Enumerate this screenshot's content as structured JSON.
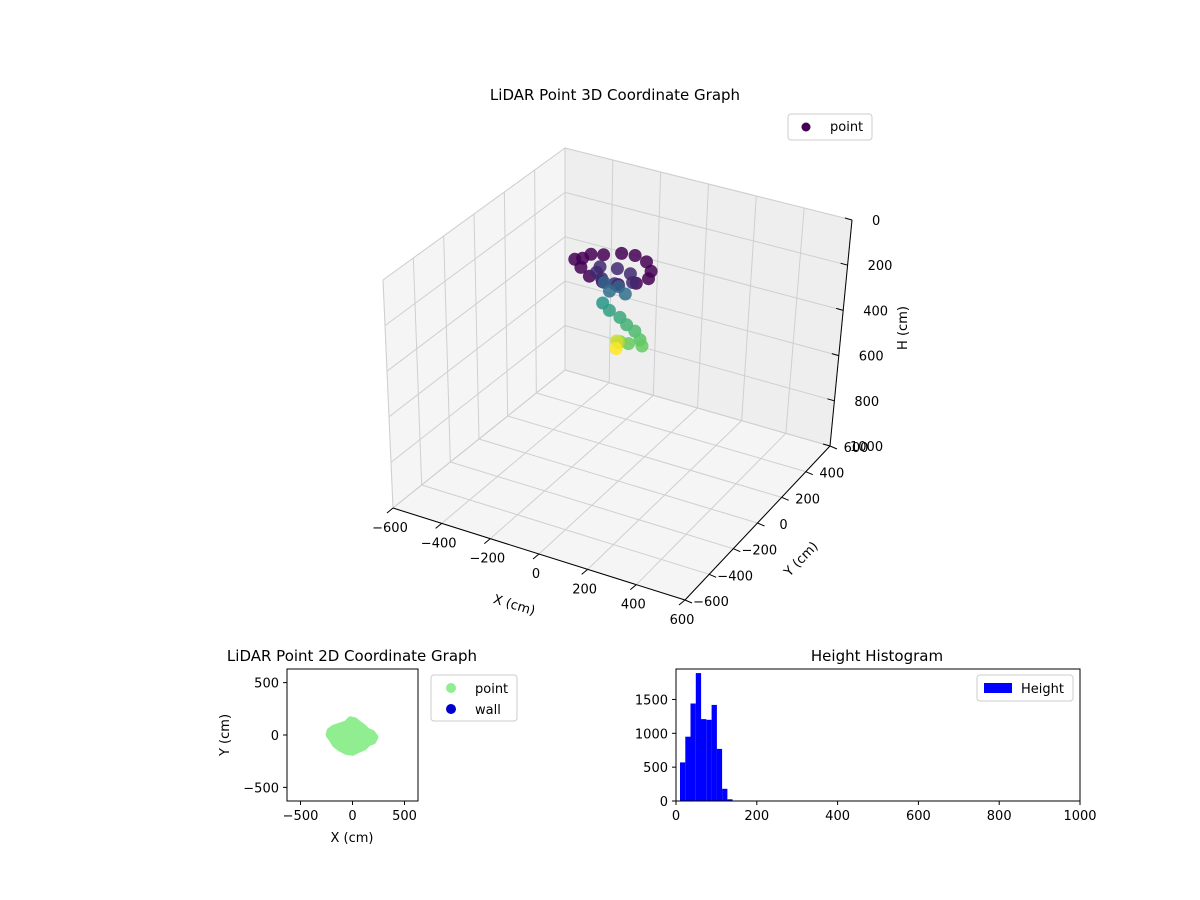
{
  "chart_data": [
    {
      "type": "scatter3d",
      "title": "LiDAR Point 3D Coordinate Graph",
      "xlabel": "X (cm)",
      "ylabel": "Y (cm)",
      "zlabel": "H (cm)",
      "xlim": [
        -600,
        600
      ],
      "ylim": [
        -600,
        600
      ],
      "zlim": [
        1000,
        0
      ],
      "xticks": [
        "−600",
        "−400",
        "−200",
        "0",
        "200",
        "400",
        "600"
      ],
      "yticks": [
        "−600",
        "−400",
        "−200",
        "0",
        "200",
        "400",
        "600"
      ],
      "zticks": [
        "0",
        "200",
        "400",
        "600",
        "800",
        "1000"
      ],
      "legend": {
        "entries": [
          "point"
        ],
        "placement": "upper-right"
      },
      "colormap": "viridis",
      "grid": true,
      "series": [
        {
          "name": "point",
          "color": "#440154",
          "points": [
            [
              -150,
              0,
              60
            ],
            [
              -100,
              60,
              60
            ],
            [
              -50,
              100,
              60
            ],
            [
              0,
              110,
              60
            ],
            [
              60,
              90,
              60
            ],
            [
              110,
              40,
              60
            ],
            [
              130,
              -10,
              60
            ],
            [
              110,
              -60,
              60
            ],
            [
              60,
              -100,
              60
            ],
            [
              0,
              -110,
              60
            ],
            [
              -60,
              -100,
              60
            ],
            [
              -120,
              -60,
              60
            ],
            [
              -170,
              -20,
              60
            ],
            [
              -140,
              40,
              60
            ],
            [
              -90,
              20,
              90
            ],
            [
              -30,
              40,
              90
            ],
            [
              30,
              30,
              90
            ],
            [
              70,
              -20,
              90
            ],
            [
              20,
              -60,
              90
            ],
            [
              -40,
              -50,
              90
            ],
            [
              -80,
              -20,
              90
            ],
            [
              -60,
              0,
              140
            ],
            [
              0,
              0,
              140
            ],
            [
              40,
              -20,
              150
            ],
            [
              -20,
              -30,
              150
            ],
            [
              -30,
              -60,
              190
            ],
            [
              10,
              -80,
              200
            ],
            [
              60,
              -90,
              210
            ],
            [
              100,
              -110,
              220
            ],
            [
              140,
              -120,
              230
            ],
            [
              180,
              -150,
              240
            ],
            [
              200,
              -170,
              250
            ],
            [
              150,
              -180,
              250
            ],
            [
              110,
              -170,
              260
            ],
            [
              90,
              -150,
              280
            ],
            [
              70,
              -130,
              290
            ],
            [
              80,
              -150,
              310
            ]
          ],
          "h_values": [
            60,
            60,
            60,
            60,
            60,
            60,
            60,
            60,
            60,
            60,
            60,
            60,
            60,
            60,
            90,
            90,
            90,
            90,
            90,
            90,
            90,
            140,
            140,
            150,
            150,
            190,
            200,
            210,
            220,
            230,
            240,
            250,
            250,
            260,
            280,
            290,
            310
          ]
        }
      ]
    },
    {
      "type": "scatter",
      "title": "LiDAR Point 2D Coordinate Graph",
      "xlabel": "X (cm)",
      "ylabel": "Y (cm)",
      "xlim": [
        -630,
        630
      ],
      "ylim": [
        -630,
        630
      ],
      "xticks": [
        "−500",
        "0",
        "500"
      ],
      "yticks": [
        "−500",
        "0",
        "500"
      ],
      "legend": {
        "entries": [
          "point",
          "wall"
        ],
        "placement": "outside-right"
      },
      "series": [
        {
          "name": "point",
          "color": "#90ee90",
          "outline": [
            [
              -220,
              40
            ],
            [
              -180,
              70
            ],
            [
              -120,
              90
            ],
            [
              -60,
              110
            ],
            [
              -20,
              150
            ],
            [
              20,
              140
            ],
            [
              60,
              110
            ],
            [
              100,
              80
            ],
            [
              140,
              40
            ],
            [
              190,
              20
            ],
            [
              220,
              -20
            ],
            [
              200,
              -60
            ],
            [
              150,
              -80
            ],
            [
              110,
              -120
            ],
            [
              60,
              -140
            ],
            [
              0,
              -170
            ],
            [
              -60,
              -160
            ],
            [
              -120,
              -130
            ],
            [
              -170,
              -90
            ],
            [
              -200,
              -40
            ],
            [
              -230,
              0
            ]
          ]
        },
        {
          "name": "wall",
          "color": "#0000cd",
          "points": []
        }
      ]
    },
    {
      "type": "bar",
      "title": "Height Histogram",
      "xlabel": "",
      "ylabel": "",
      "xlim": [
        0,
        1000
      ],
      "ylim": [
        0,
        1950
      ],
      "xticks": [
        "0",
        "200",
        "400",
        "600",
        "800",
        "1000"
      ],
      "yticks": [
        "0",
        "500",
        "1000",
        "1500"
      ],
      "legend": {
        "entries": [
          "Height"
        ],
        "placement": "upper-right"
      },
      "series": [
        {
          "name": "Height",
          "color": "#0000ff",
          "bin_width": 13,
          "bin_starts": [
            10,
            23,
            36,
            49,
            62,
            75,
            88,
            101,
            114,
            127
          ],
          "values": [
            570,
            950,
            1440,
            1890,
            1210,
            1200,
            1420,
            770,
            180,
            25
          ]
        }
      ]
    }
  ]
}
